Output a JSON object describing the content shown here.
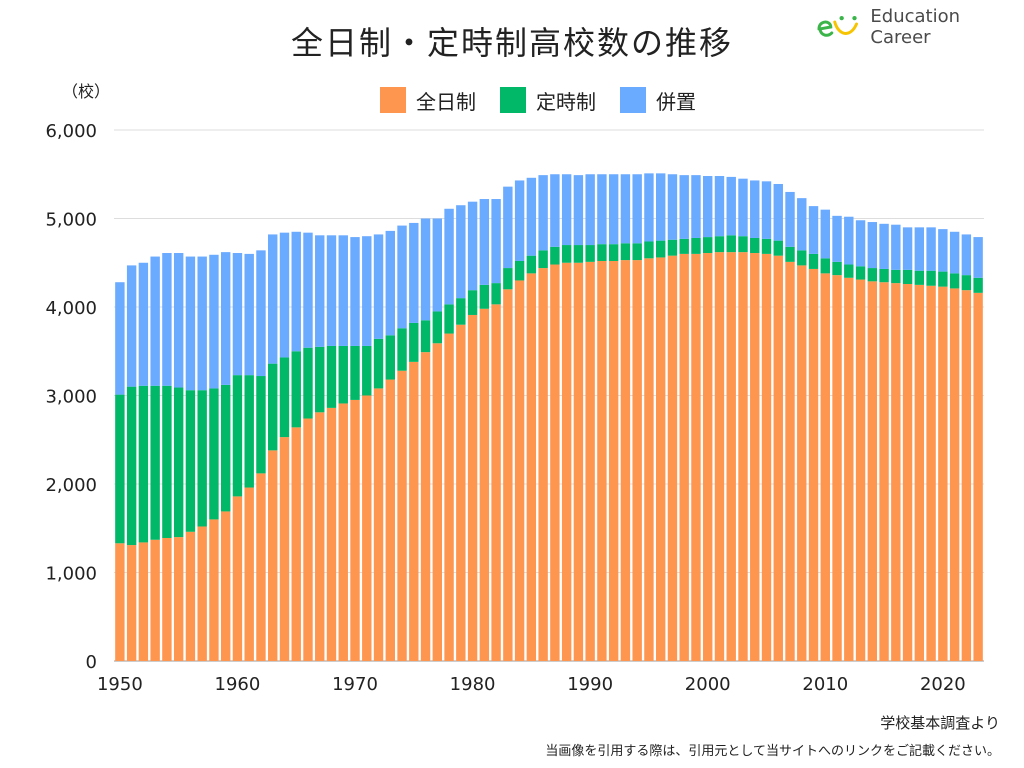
{
  "header": {
    "title": "全日制・定時制高校数の推移"
  },
  "logo": {
    "text": "Education Career"
  },
  "footer": {
    "source": "学校基本調査より",
    "note": "当画像を引用する際は、引用元として当サイトへのリンクをご記載ください。"
  },
  "colors": {
    "fulltime": "#ff9650",
    "parttime": "#00b868",
    "both": "#6aaaff"
  },
  "chart_data": {
    "type": "bar",
    "stacked": true,
    "unit_label": "（校）",
    "x": [
      1950,
      1951,
      1952,
      1953,
      1954,
      1955,
      1956,
      1957,
      1958,
      1959,
      1960,
      1961,
      1962,
      1963,
      1964,
      1965,
      1966,
      1967,
      1968,
      1969,
      1970,
      1971,
      1972,
      1973,
      1974,
      1975,
      1976,
      1977,
      1978,
      1979,
      1980,
      1981,
      1982,
      1983,
      1984,
      1985,
      1986,
      1987,
      1988,
      1989,
      1990,
      1991,
      1992,
      1993,
      1994,
      1995,
      1996,
      1997,
      1998,
      1999,
      2000,
      2001,
      2002,
      2003,
      2004,
      2005,
      2006,
      2007,
      2008,
      2009,
      2010,
      2011,
      2012,
      2013,
      2014,
      2015,
      2016,
      2017,
      2018,
      2019,
      2020,
      2021,
      2022,
      2023
    ],
    "xticks": [
      1950,
      1960,
      1970,
      1980,
      1990,
      2000,
      2010,
      2020
    ],
    "ylim": [
      0,
      6000
    ],
    "yticks": [
      0,
      1000,
      2000,
      3000,
      4000,
      5000,
      6000
    ],
    "ytick_labels": [
      "0",
      "1,000",
      "2,000",
      "3,000",
      "4,000",
      "5,000",
      "6,000"
    ],
    "grid": true,
    "legend": "top",
    "series": [
      {
        "name": "全日制",
        "values": [
          1330,
          1310,
          1340,
          1370,
          1390,
          1400,
          1460,
          1520,
          1600,
          1690,
          1860,
          1960,
          2120,
          2380,
          2530,
          2640,
          2740,
          2810,
          2860,
          2910,
          2950,
          3000,
          3080,
          3180,
          3280,
          3380,
          3490,
          3590,
          3700,
          3800,
          3910,
          3980,
          4030,
          4200,
          4300,
          4380,
          4440,
          4480,
          4500,
          4500,
          4510,
          4520,
          4520,
          4530,
          4530,
          4550,
          4560,
          4580,
          4600,
          4600,
          4610,
          4620,
          4620,
          4620,
          4610,
          4600,
          4580,
          4510,
          4470,
          4430,
          4380,
          4360,
          4330,
          4310,
          4290,
          4280,
          4270,
          4260,
          4250,
          4240,
          4230,
          4210,
          4190,
          4160
        ]
      },
      {
        "name": "定時制",
        "values": [
          1680,
          1790,
          1770,
          1740,
          1720,
          1690,
          1600,
          1540,
          1480,
          1430,
          1370,
          1270,
          1100,
          980,
          900,
          860,
          800,
          740,
          700,
          650,
          610,
          560,
          560,
          500,
          480,
          440,
          360,
          360,
          330,
          300,
          280,
          270,
          240,
          240,
          220,
          200,
          200,
          200,
          200,
          200,
          190,
          190,
          190,
          190,
          190,
          190,
          190,
          180,
          170,
          180,
          180,
          180,
          190,
          180,
          170,
          170,
          170,
          170,
          170,
          170,
          170,
          150,
          150,
          150,
          150,
          150,
          150,
          160,
          160,
          170,
          170,
          170,
          170,
          170
        ]
      },
      {
        "name": "併置",
        "values": [
          1270,
          1370,
          1390,
          1460,
          1500,
          1520,
          1510,
          1510,
          1510,
          1500,
          1380,
          1370,
          1420,
          1460,
          1410,
          1350,
          1300,
          1260,
          1250,
          1250,
          1230,
          1240,
          1180,
          1180,
          1160,
          1130,
          1150,
          1050,
          1080,
          1050,
          1000,
          970,
          950,
          920,
          910,
          880,
          850,
          820,
          800,
          790,
          800,
          790,
          790,
          780,
          780,
          770,
          760,
          740,
          720,
          710,
          690,
          680,
          660,
          650,
          650,
          650,
          640,
          620,
          590,
          540,
          550,
          520,
          540,
          520,
          520,
          510,
          510,
          480,
          490,
          490,
          480,
          470,
          460,
          460
        ]
      }
    ]
  }
}
